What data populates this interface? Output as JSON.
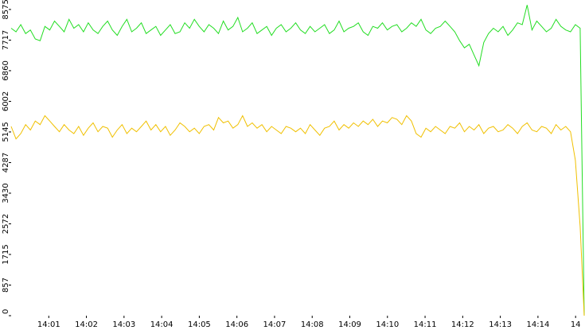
{
  "chart_data": {
    "type": "line",
    "xlim": [
      0,
      15.25
    ],
    "xticks": [
      {
        "value": 1,
        "label": "14:01"
      },
      {
        "value": 2,
        "label": "14:02"
      },
      {
        "value": 3,
        "label": "14:03"
      },
      {
        "value": 4,
        "label": "14:04"
      },
      {
        "value": 5,
        "label": "14:05"
      },
      {
        "value": 6,
        "label": "14:06"
      },
      {
        "value": 7,
        "label": "14:07"
      },
      {
        "value": 8,
        "label": "14:08"
      },
      {
        "value": 9,
        "label": "14:09"
      },
      {
        "value": 10,
        "label": "14:10"
      },
      {
        "value": 11,
        "label": "14:11"
      },
      {
        "value": 12,
        "label": "14:12"
      },
      {
        "value": 13,
        "label": "14:13"
      },
      {
        "value": 14,
        "label": "14:14"
      },
      {
        "value": 15,
        "label": "14"
      }
    ],
    "ylim": [
      0,
      8840
    ],
    "yticks": [
      0,
      857,
      1715,
      2572,
      3430,
      4287,
      5145,
      6002,
      6860,
      7717,
      8575
    ],
    "grid": false,
    "series": [
      {
        "color": "#22dd22",
        "values": [
          8050,
          7950,
          8150,
          7900,
          8000,
          7750,
          7700,
          8100,
          8000,
          8250,
          8100,
          7950,
          8300,
          8050,
          8150,
          7950,
          8200,
          8000,
          7900,
          8100,
          8250,
          8000,
          7850,
          8100,
          8300,
          7950,
          8050,
          8200,
          7900,
          8000,
          8100,
          7850,
          8000,
          8150,
          7900,
          7950,
          8200,
          8050,
          8300,
          8100,
          7950,
          8150,
          8050,
          7900,
          8250,
          8000,
          8100,
          8350,
          7950,
          8050,
          8200,
          7900,
          8000,
          8100,
          7850,
          8050,
          8150,
          7950,
          8050,
          8200,
          8000,
          7900,
          8100,
          7950,
          8050,
          8150,
          7900,
          8000,
          8250,
          7950,
          8050,
          8100,
          8200,
          7950,
          7850,
          8100,
          8050,
          8200,
          8000,
          8100,
          8150,
          7950,
          8050,
          8200,
          8100,
          8300,
          8000,
          7900,
          8050,
          8100,
          8250,
          8100,
          7950,
          7700,
          7500,
          7600,
          7300,
          7000,
          7650,
          7900,
          8050,
          7950,
          8100,
          7850,
          8000,
          8200,
          8150,
          8700,
          8000,
          8250,
          8100,
          7950,
          8050,
          8300,
          8100,
          8000,
          7950,
          8150,
          8050,
          0
        ]
      },
      {
        "color": "#f0c000",
        "values": [
          5300,
          4950,
          5100,
          5350,
          5200,
          5450,
          5350,
          5600,
          5450,
          5300,
          5150,
          5350,
          5200,
          5100,
          5300,
          5050,
          5250,
          5400,
          5150,
          5300,
          5250,
          5000,
          5200,
          5350,
          5100,
          5250,
          5150,
          5300,
          5450,
          5200,
          5350,
          5150,
          5300,
          5050,
          5200,
          5400,
          5300,
          5150,
          5250,
          5100,
          5300,
          5350,
          5200,
          5550,
          5400,
          5450,
          5250,
          5350,
          5600,
          5300,
          5400,
          5250,
          5350,
          5150,
          5300,
          5200,
          5100,
          5300,
          5250,
          5150,
          5250,
          5100,
          5350,
          5200,
          5050,
          5250,
          5300,
          5450,
          5200,
          5350,
          5250,
          5400,
          5300,
          5450,
          5350,
          5500,
          5300,
          5450,
          5400,
          5550,
          5500,
          5350,
          5600,
          5450,
          5100,
          5000,
          5250,
          5150,
          5300,
          5200,
          5100,
          5300,
          5250,
          5400,
          5150,
          5300,
          5200,
          5350,
          5100,
          5250,
          5300,
          5150,
          5200,
          5350,
          5250,
          5100,
          5300,
          5400,
          5200,
          5150,
          5300,
          5250,
          5100,
          5350,
          5200,
          5300,
          5150,
          4350,
          2500,
          0
        ]
      }
    ]
  }
}
